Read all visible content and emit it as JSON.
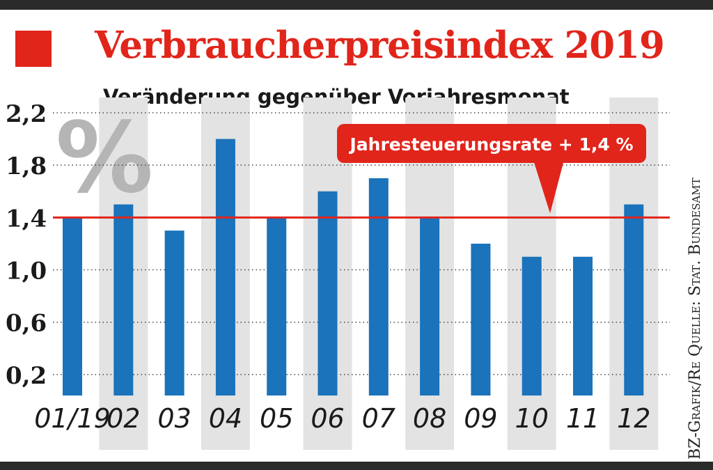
{
  "header": {
    "title": "Verbraucherpreisindex 2019",
    "subtitle": "Veränderung gegenüber Vorjahresmonat",
    "source": "BZ-Grafik/Re Quelle: Stat. Bundesamt",
    "percent_symbol": "%"
  },
  "colors": {
    "bar": "#1a73bb",
    "accent": "#e1251b",
    "stripe": "#e3e3e3",
    "percent_watermark": "#b5b5b5"
  },
  "chart_data": {
    "type": "bar",
    "title": "Verbraucherpreisindex 2019",
    "subtitle": "Veränderung gegenüber Vorjahresmonat",
    "categories": [
      "01/19",
      "02",
      "03",
      "04",
      "05",
      "06",
      "07",
      "08",
      "09",
      "10",
      "11",
      "12"
    ],
    "values": [
      1.4,
      1.5,
      1.3,
      2.0,
      1.4,
      1.6,
      1.7,
      1.4,
      1.2,
      1.1,
      1.1,
      1.5
    ],
    "yticks": [
      "2,2",
      "1,8",
      "1,4",
      "1,0",
      "0,6",
      "0,2"
    ],
    "ytick_values": [
      2.2,
      1.8,
      1.4,
      1.0,
      0.6,
      0.2
    ],
    "ylim": [
      0.04,
      2.2
    ],
    "grid": true,
    "reference_line": {
      "value": 1.4,
      "label": "Jahresteuerungsrate + 1,4 %"
    }
  }
}
